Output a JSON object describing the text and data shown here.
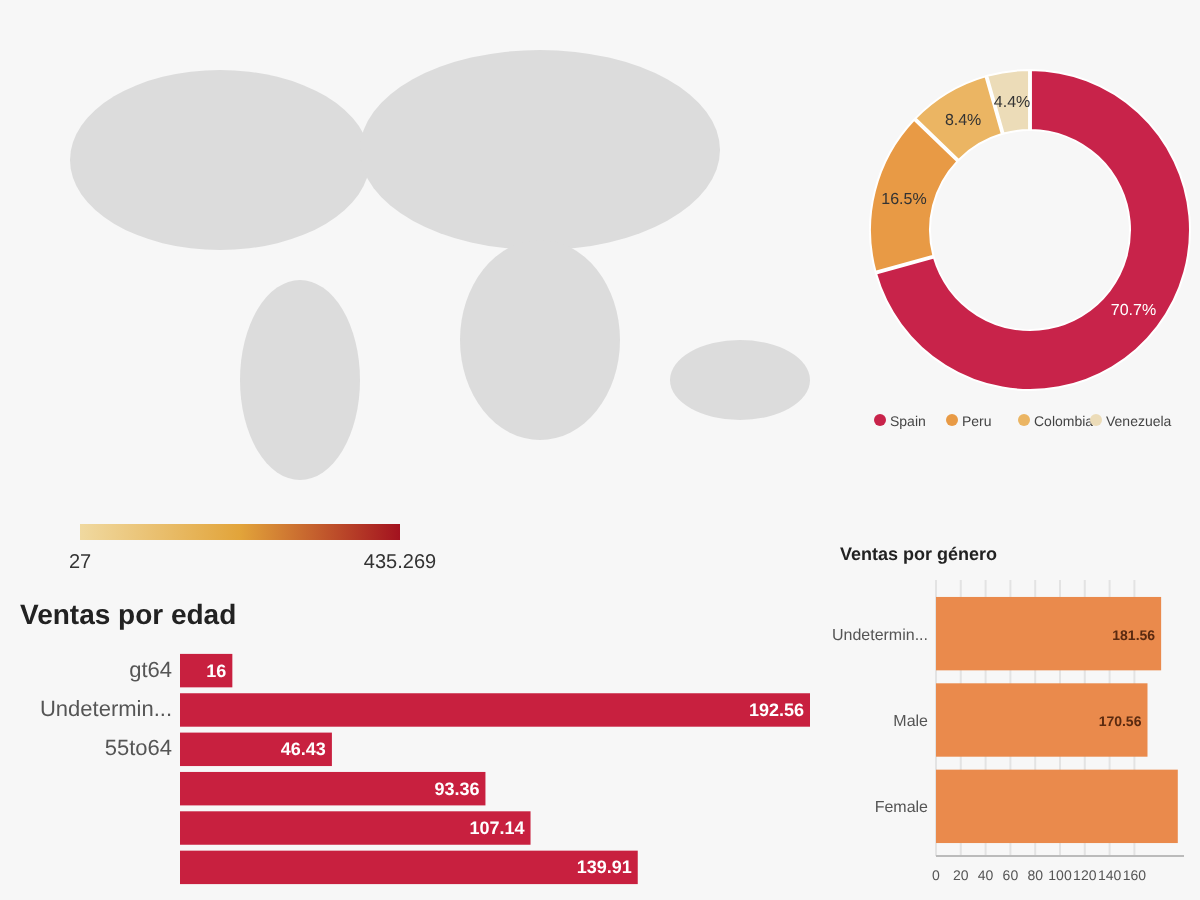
{
  "chart_data": [
    {
      "type": "other",
      "annotations": [
        "27",
        "435.269"
      ],
      "colors": [
        "#f0d9a0",
        "#e2a43a",
        "#a3121f"
      ]
    },
    {
      "type": "donut",
      "categories": [
        "Spain",
        "Peru",
        "Colombia",
        "Venezuela"
      ],
      "values": [
        70.7,
        16.5,
        8.4,
        4.4
      ],
      "colors": [
        "#c8234a",
        "#e89a45",
        "#ebb563",
        "#ecdcb8"
      ],
      "value_labels": [
        "70.7%",
        "16.5%",
        "8.4%",
        "4.4%"
      ],
      "legend": "bottom"
    },
    {
      "type": "bar",
      "orientation": "horizontal",
      "title": "Ventas por edad",
      "categories": [
        "gt64",
        "Undetermin...",
        "55to64",
        null,
        null,
        null
      ],
      "values": [
        16,
        192.56,
        46.43,
        93.36,
        107.14,
        139.91
      ],
      "color": "#c8203f",
      "data_labels": true
    },
    {
      "type": "bar",
      "orientation": "horizontal",
      "title": "Ventas por género",
      "categories": [
        "Undetermin...",
        "Male",
        "Female"
      ],
      "values": [
        181.56,
        170.56,
        195
      ],
      "color": "#ea8a4c",
      "value_labels": [
        "181.56",
        "170.56",
        null
      ],
      "xlim": [
        0,
        200
      ],
      "xticks": [
        0,
        20,
        40,
        60,
        80,
        100,
        120,
        140,
        160
      ],
      "grid": "x"
    }
  ]
}
